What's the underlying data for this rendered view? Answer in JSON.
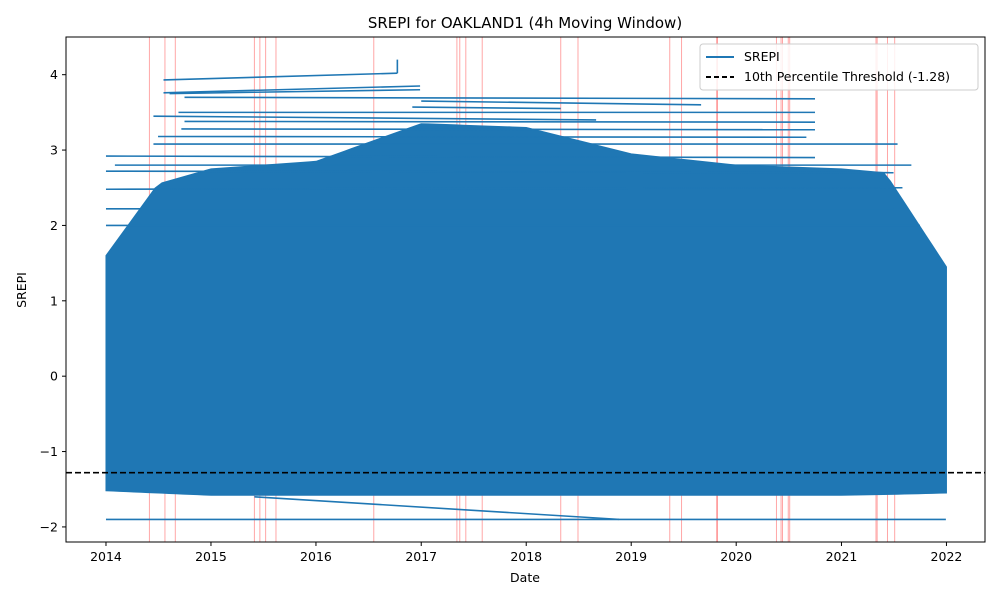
{
  "chart_data": {
    "type": "line",
    "title": "SREPI for OAKLAND1 (4h Moving Window)",
    "xlabel": "Date",
    "ylabel": "SREPI",
    "xlim": [
      "2013-08-15",
      "2022-05-15"
    ],
    "ylim": [
      -2.2,
      4.5
    ],
    "x_ticks": [
      "2014",
      "2015",
      "2016",
      "2017",
      "2018",
      "2019",
      "2020",
      "2021",
      "2022"
    ],
    "x_tick_dates": [
      "2014-01-01",
      "2015-01-01",
      "2016-01-01",
      "2017-01-01",
      "2018-01-01",
      "2019-01-01",
      "2020-01-01",
      "2021-01-01",
      "2022-01-01"
    ],
    "y_ticks": [
      -2,
      -1,
      0,
      1,
      2,
      3,
      4
    ],
    "y_tick_labels": [
      "−2",
      "−1",
      "0",
      "1",
      "2",
      "3",
      "4"
    ],
    "grid": false,
    "legend_position": "top-right",
    "series": [
      {
        "name": "SREPI",
        "color": "#1f77b4",
        "band": {
          "x": [
            "2014-01-01",
            "2014-07-01",
            "2015-01-01",
            "2016-01-01",
            "2017-01-01",
            "2018-01-01",
            "2019-01-01",
            "2020-01-01",
            "2021-01-01",
            "2021-06-01",
            "2022-01-01"
          ],
          "y_min": [
            -1.52,
            -1.55,
            -1.58,
            -1.58,
            -1.58,
            -1.58,
            -1.58,
            -1.58,
            -1.58,
            -1.57,
            -1.55
          ],
          "y_max": [
            1.6,
            2.55,
            2.75,
            2.85,
            3.35,
            3.3,
            2.95,
            2.8,
            2.75,
            2.7,
            1.45
          ]
        },
        "segments": [
          {
            "x": [
              "2014-01-01",
              "2021-12-30"
            ],
            "y": [
              -1.9,
              -1.9
            ]
          },
          {
            "x": [
              "2014-07-20",
              "2016-10-10"
            ],
            "y": [
              3.93,
              4.02
            ]
          },
          {
            "x": [
              "2016-10-10",
              "2016-10-10"
            ],
            "y": [
              4.02,
              4.2
            ]
          },
          {
            "x": [
              "2014-07-20",
              "2016-12-28"
            ],
            "y": [
              3.76,
              3.85
            ]
          },
          {
            "x": [
              "2014-08-10",
              "2016-12-28"
            ],
            "y": [
              3.75,
              3.8
            ]
          },
          {
            "x": [
              "2014-10-01",
              "2020-10-01"
            ],
            "y": [
              3.7,
              3.68
            ]
          },
          {
            "x": [
              "2017-01-01",
              "2019-09-01"
            ],
            "y": [
              3.65,
              3.6
            ]
          },
          {
            "x": [
              "2016-12-01",
              "2018-05-01"
            ],
            "y": [
              3.57,
              3.55
            ]
          },
          {
            "x": [
              "2014-09-10",
              "2020-10-01"
            ],
            "y": [
              3.5,
              3.5
            ]
          },
          {
            "x": [
              "2014-06-15",
              "2018-09-01"
            ],
            "y": [
              3.45,
              3.4
            ]
          },
          {
            "x": [
              "2014-10-01",
              "2020-10-01"
            ],
            "y": [
              3.38,
              3.37
            ]
          },
          {
            "x": [
              "2014-09-20",
              "2020-10-01"
            ],
            "y": [
              3.28,
              3.27
            ]
          },
          {
            "x": [
              "2014-07-01",
              "2020-09-01"
            ],
            "y": [
              3.18,
              3.17
            ]
          },
          {
            "x": [
              "2014-06-15",
              "2021-07-15"
            ],
            "y": [
              3.08,
              3.08
            ]
          },
          {
            "x": [
              "2014-01-01",
              "2020-10-01"
            ],
            "y": [
              2.92,
              2.9
            ]
          },
          {
            "x": [
              "2014-02-01",
              "2021-09-01"
            ],
            "y": [
              2.8,
              2.8
            ]
          },
          {
            "x": [
              "2014-01-01",
              "2021-07-01"
            ],
            "y": [
              2.72,
              2.7
            ]
          },
          {
            "x": [
              "2014-01-01",
              "2021-08-01"
            ],
            "y": [
              2.48,
              2.5
            ]
          },
          {
            "x": [
              "2014-01-01",
              "2021-07-01"
            ],
            "y": [
              2.22,
              2.22
            ]
          },
          {
            "x": [
              "2014-01-01",
              "2021-10-01"
            ],
            "y": [
              2.0,
              2.0
            ]
          },
          {
            "x": [
              "2015-06-01",
              "2018-11-20"
            ],
            "y": [
              -1.6,
              -1.9
            ]
          }
        ]
      },
      {
        "name": "10th Percentile Threshold (-1.28)",
        "color": "#000000",
        "style": "dashed",
        "value": -1.28
      }
    ],
    "event_markers": {
      "color": "#ff0000",
      "dates": [
        "2014-06-01",
        "2014-07-25",
        "2014-08-30",
        "2015-06-01",
        "2015-06-20",
        "2015-07-10",
        "2015-08-15",
        "2016-07-20",
        "2017-05-05",
        "2017-05-15",
        "2017-06-05",
        "2017-08-01",
        "2018-05-01",
        "2018-06-30",
        "2019-05-15",
        "2019-06-25",
        "2019-10-25",
        "2019-10-28",
        "2020-05-20",
        "2020-06-05",
        "2020-06-10",
        "2020-06-30",
        "2020-07-05",
        "2021-05-01",
        "2021-05-05",
        "2021-06-10",
        "2021-07-05"
      ]
    }
  }
}
